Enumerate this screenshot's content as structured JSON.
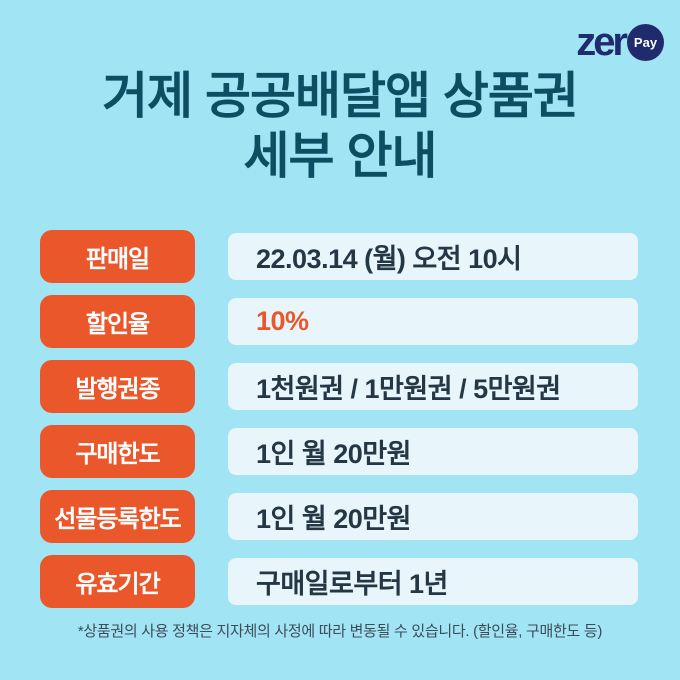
{
  "page": {
    "background_color": "#a1e4f4"
  },
  "logo": {
    "word_prefix": "zer",
    "circle_text": "Pay",
    "brand_color": "#1f2b6d"
  },
  "title": {
    "line1": "거제 공공배달앱 상품권",
    "line2": "세부 안내",
    "color": "#0d4e63"
  },
  "table": {
    "label_bg_color": "#ea572b",
    "row_bg_color": "#e8f5fa",
    "value_text_color": "#253645",
    "highlight_text_color": "#ea572b",
    "rows": [
      {
        "label": "판매일",
        "value": "22.03.14 (월) 오전 10시",
        "highlight": false
      },
      {
        "label": "할인율",
        "value": "10%",
        "highlight": true
      },
      {
        "label": "발행권종",
        "value": "1천원권 / 1만원권 / 5만원권",
        "highlight": false
      },
      {
        "label": "구매한도",
        "value": "1인 월 20만원",
        "highlight": false
      },
      {
        "label": "선물등록한도",
        "value": "1인 월 20만원",
        "highlight": false
      },
      {
        "label": "유효기간",
        "value": "구매일로부터 1년",
        "highlight": false
      }
    ]
  },
  "footer": {
    "note": "*상품권의 사용 정책은 지자체의 사정에 따라 변동될 수 있습니다. (할인율, 구매한도 등)"
  }
}
